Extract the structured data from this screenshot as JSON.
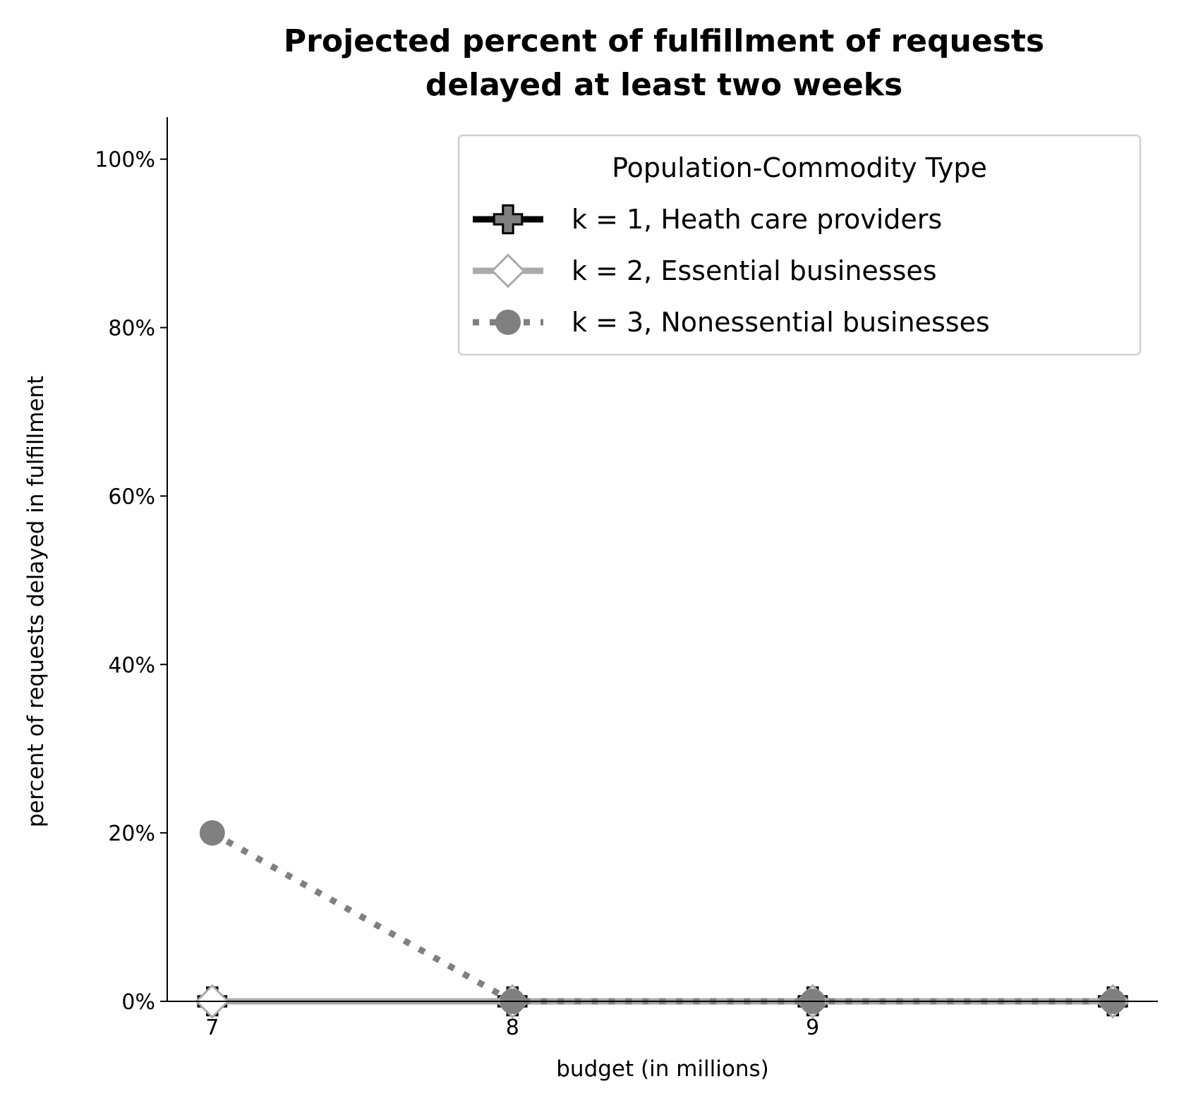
{
  "chart_data": {
    "type": "line",
    "title_lines": [
      "Projected percent of fulfillment of requests",
      "delayed at least two weeks"
    ],
    "xlabel": "budget (in millions)",
    "ylabel": "percent of requests delayed in fulfillment",
    "x": [
      7,
      8,
      9,
      10
    ],
    "xlim": [
      6.85,
      10.15
    ],
    "ylim": [
      0,
      105
    ],
    "xticks": [
      7,
      8,
      9
    ],
    "xtick_labels": [
      "7",
      "8",
      "9"
    ],
    "yticks": [
      0,
      20,
      40,
      60,
      80,
      100
    ],
    "ytick_labels": [
      "0%",
      "20%",
      "40%",
      "60%",
      "80%",
      "100%"
    ],
    "grid": false,
    "legend": {
      "title": "Population-Commodity Type",
      "placement": "top-right"
    },
    "series": [
      {
        "name": "k = 1, Heath care providers",
        "values": [
          0,
          0,
          0,
          0
        ],
        "color": "#000000",
        "marker_color": "#808080",
        "marker": "plus",
        "linestyle": "solid"
      },
      {
        "name": "k = 2, Essential businesses",
        "values": [
          0,
          0,
          0,
          0
        ],
        "color": "#aaaaaa",
        "marker_color": "#ffffff",
        "marker": "diamond",
        "linestyle": "solid"
      },
      {
        "name": "k = 3, Nonessential businesses",
        "values": [
          20,
          0,
          0,
          0
        ],
        "color": "#808080",
        "marker_color": "#808080",
        "marker": "circle",
        "linestyle": "dotted"
      }
    ]
  }
}
